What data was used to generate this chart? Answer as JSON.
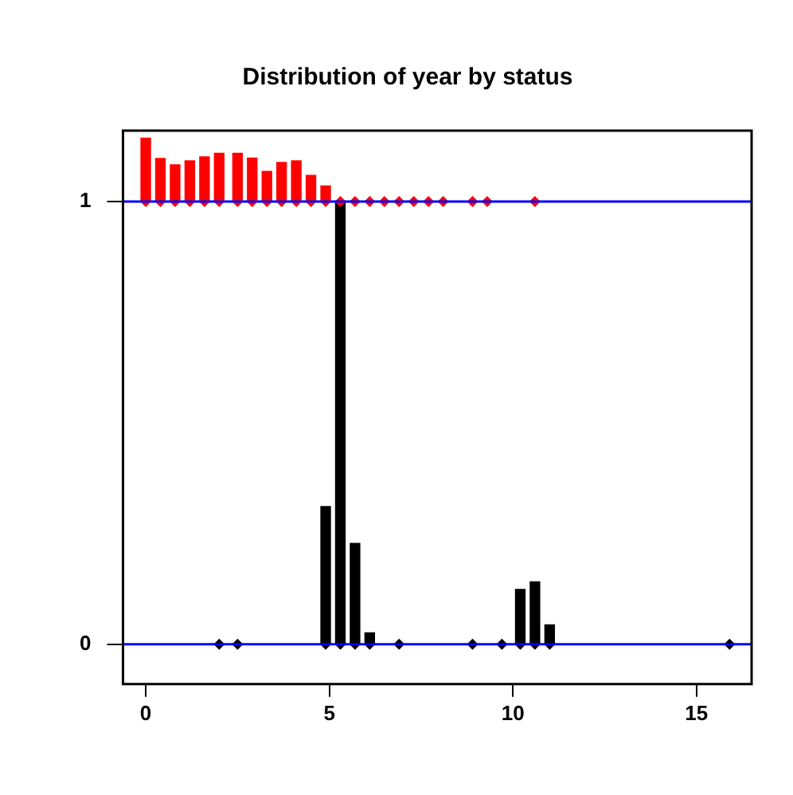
{
  "chart_data": {
    "type": "bar",
    "title": "Distribution of year by status",
    "xlim": [
      -0.62,
      16.5
    ],
    "xticks": [
      0,
      5,
      10,
      15
    ],
    "ylim": [
      -0.09,
      1.16
    ],
    "yticks": [
      0,
      1
    ],
    "grid": false,
    "legend": false,
    "ref_lines": [
      {
        "axis": "y",
        "value": 0,
        "color": "#0000ff"
      },
      {
        "axis": "y",
        "value": 1,
        "color": "#0000ff"
      }
    ],
    "series": [
      {
        "color": "#ff0000",
        "x": [
          0,
          0.4,
          0.8,
          1.2,
          1.6,
          2.0,
          2.5,
          2.9,
          3.3,
          3.7,
          4.1,
          4.5,
          4.9,
          5.3,
          5.7,
          6.1,
          6.5,
          6.9,
          7.3,
          7.7,
          8.1,
          8.9,
          9.3,
          10.6
        ],
        "values": [
          0.143,
          0.097,
          0.083,
          0.092,
          0.101,
          0.109,
          0.109,
          0.098,
          0.068,
          0.088,
          0.092,
          0.059,
          0.035,
          0,
          0,
          0,
          0,
          0,
          0,
          0,
          0,
          0,
          0,
          0
        ],
        "base": [
          1,
          1,
          1,
          1,
          1,
          1,
          1,
          1,
          1,
          1,
          1,
          1,
          1,
          1,
          1,
          1,
          1,
          1,
          1,
          1,
          1,
          1,
          1,
          1
        ]
      },
      {
        "color": "#000000",
        "x": [
          2.0,
          2.5,
          4.9,
          5.3,
          5.7,
          6.1,
          6.9,
          8.9,
          9.7,
          10.2,
          10.6,
          11.0,
          15.9
        ],
        "values": [
          0,
          0,
          0.311,
          1.0,
          0.228,
          0.026,
          0,
          0,
          0,
          0.124,
          0.141,
          0.044,
          0
        ],
        "base": [
          0,
          0,
          0,
          0,
          0,
          0,
          0,
          0,
          0,
          0,
          0,
          0,
          0
        ]
      },
      {
        "type": "scatter",
        "marker": "diamond",
        "color": "#ff0000",
        "x": [
          0,
          0.4,
          0.8,
          1.2,
          1.6,
          2.0,
          2.5,
          2.9,
          3.3,
          3.7,
          4.1,
          4.5,
          4.9,
          5.3,
          5.7,
          6.1,
          6.5,
          6.9,
          7.3,
          7.7,
          8.1,
          8.9,
          9.3,
          10.6
        ],
        "values": [
          1,
          1,
          1,
          1,
          1,
          1,
          1,
          1,
          1,
          1,
          1,
          1,
          1,
          1,
          1,
          1,
          1,
          1,
          1,
          1,
          1,
          1,
          1,
          1
        ]
      },
      {
        "type": "scatter",
        "marker": "diamond",
        "color": "#000000",
        "x": [
          2.0,
          2.5,
          4.9,
          5.3,
          5.7,
          6.1,
          6.9,
          8.9,
          9.7,
          10.2,
          10.6,
          11.0,
          15.9
        ],
        "values": [
          0,
          0,
          0,
          0,
          0,
          0,
          0,
          0,
          0,
          0,
          0,
          0,
          0
        ]
      }
    ]
  }
}
